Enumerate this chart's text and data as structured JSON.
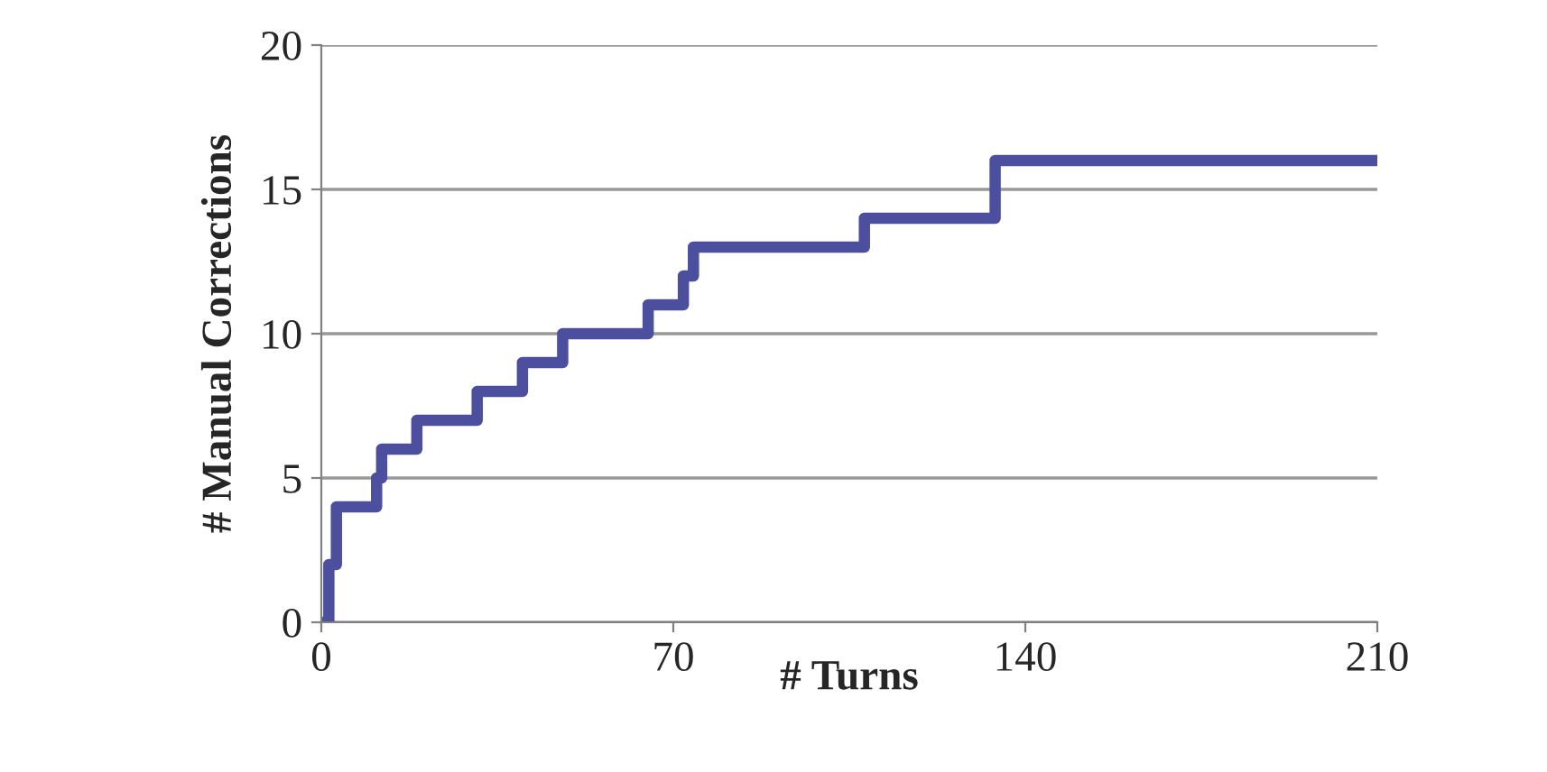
{
  "chart_data": {
    "type": "step",
    "xlabel": "# Turns",
    "ylabel": "# Manual Corrections",
    "series": [
      {
        "color": "#4b4f9e",
        "x": [
          0,
          1.5,
          3,
          11,
          12,
          19,
          31,
          40,
          48,
          65,
          72,
          74,
          108,
          134,
          210
        ],
        "values": [
          0,
          2,
          4,
          5,
          6,
          7,
          8,
          9,
          10,
          11,
          12,
          13,
          14,
          16,
          16
        ]
      }
    ],
    "xlim": [
      0,
      210
    ],
    "xticks": [
      0,
      70,
      140,
      210
    ],
    "ylim": [
      0,
      20
    ],
    "yticks": [
      0,
      5,
      10,
      15,
      20
    ],
    "grid": "y"
  }
}
